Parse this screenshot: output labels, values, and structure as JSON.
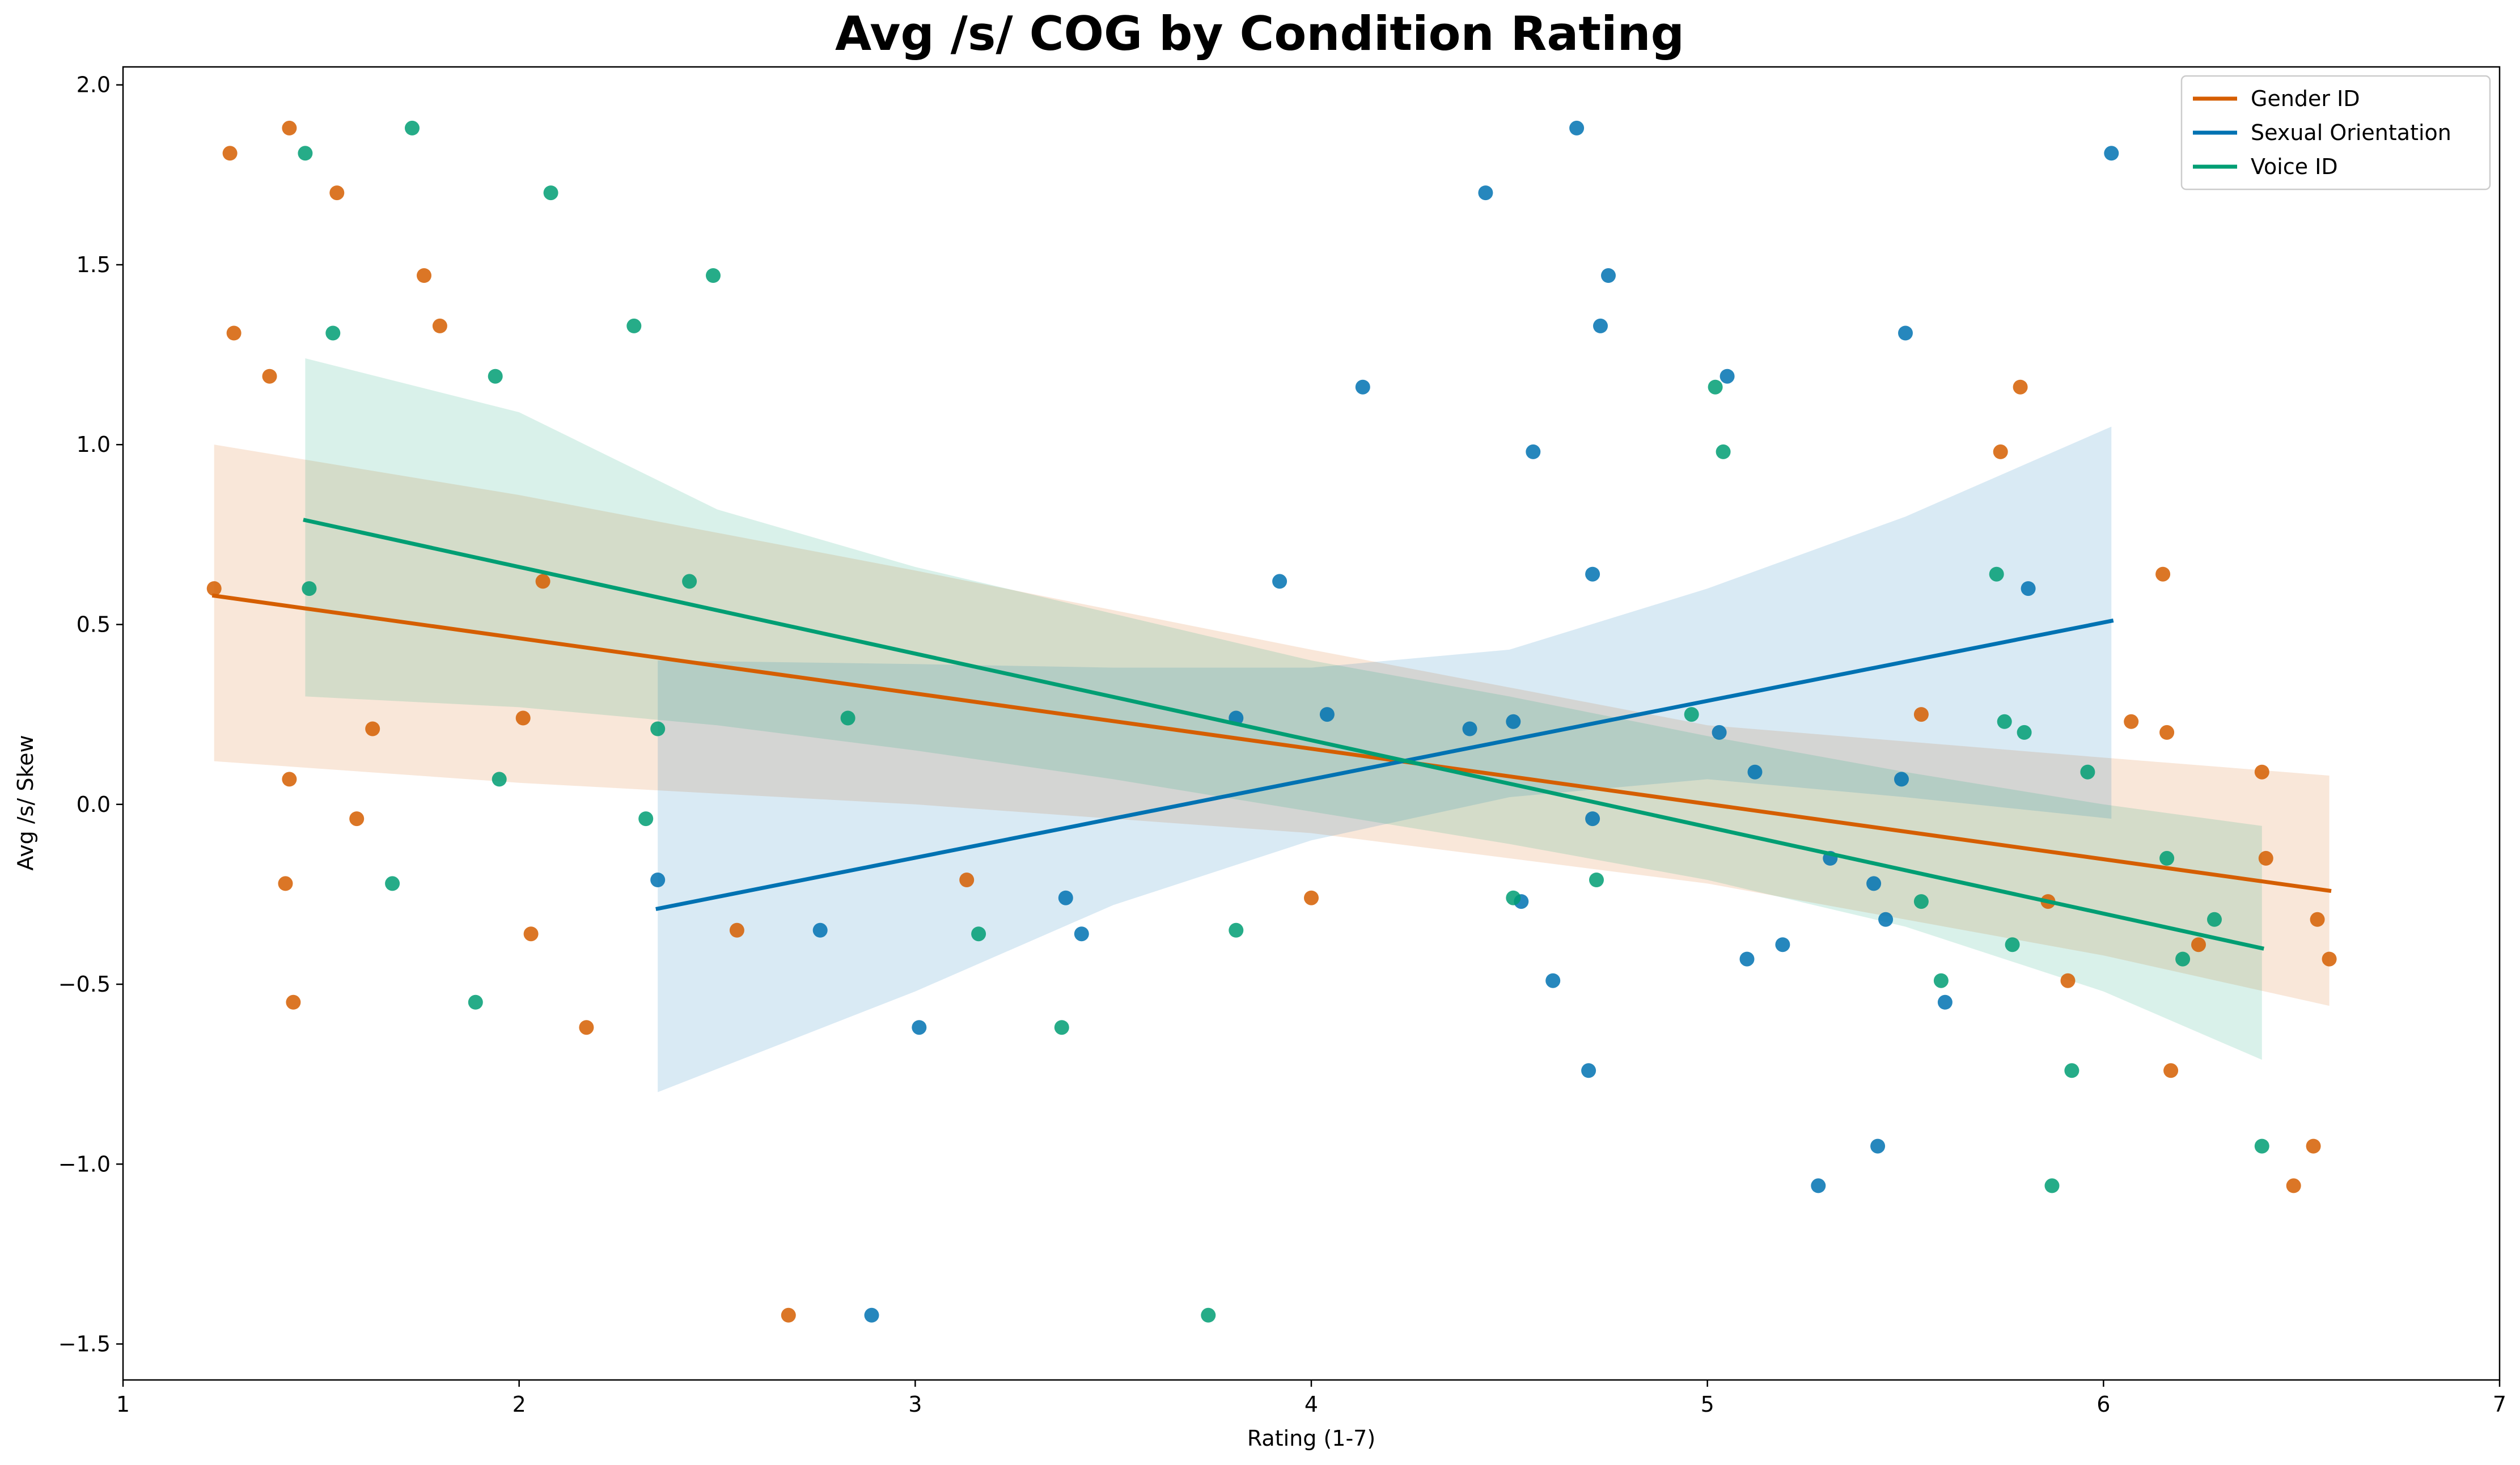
{
  "chart_data": {
    "type": "scatter",
    "title": "Avg /s/ COG by Condition Rating",
    "xlabel": "Rating (1-7)",
    "ylabel": "Avg /s/ Skew",
    "xlim": [
      1,
      7
    ],
    "ylim": [
      -1.6,
      2.05
    ],
    "x_ticks": [
      1,
      2,
      3,
      4,
      5,
      6,
      7
    ],
    "y_ticks": [
      -1.5,
      -1.0,
      -0.5,
      0.0,
      0.5,
      1.0,
      1.5,
      2.0
    ],
    "x_tick_labels": [
      "1",
      "2",
      "3",
      "4",
      "5",
      "6",
      "7"
    ],
    "y_tick_labels": [
      "−1.5",
      "−1.0",
      "−0.5",
      "0.0",
      "0.5",
      "1.0",
      "1.5",
      "2.0"
    ],
    "grid": false,
    "legend_position": "top-right",
    "series": [
      {
        "name": "Gender ID",
        "color": "#d55e00",
        "points": [
          [
            1.23,
            0.6
          ],
          [
            1.27,
            1.81
          ],
          [
            1.28,
            1.31
          ],
          [
            1.37,
            1.19
          ],
          [
            1.41,
            -0.22
          ],
          [
            1.42,
            1.88
          ],
          [
            1.42,
            0.07
          ],
          [
            1.43,
            -0.55
          ],
          [
            1.54,
            1.7
          ],
          [
            1.59,
            -0.04
          ],
          [
            1.63,
            0.21
          ],
          [
            1.76,
            1.47
          ],
          [
            1.8,
            1.33
          ],
          [
            2.01,
            0.24
          ],
          [
            2.03,
            -0.36
          ],
          [
            2.06,
            0.62
          ],
          [
            2.17,
            -0.62
          ],
          [
            2.55,
            -0.35
          ],
          [
            2.68,
            -1.42
          ],
          [
            3.13,
            -0.21
          ],
          [
            4.0,
            -0.26
          ],
          [
            5.54,
            0.25
          ],
          [
            5.74,
            0.98
          ],
          [
            5.79,
            1.16
          ],
          [
            5.86,
            -0.27
          ],
          [
            5.91,
            -0.49
          ],
          [
            6.07,
            0.23
          ],
          [
            6.15,
            0.64
          ],
          [
            6.16,
            0.2
          ],
          [
            6.17,
            -0.74
          ],
          [
            6.24,
            -0.39
          ],
          [
            6.4,
            0.09
          ],
          [
            6.41,
            -0.15
          ],
          [
            6.48,
            -1.06
          ],
          [
            6.53,
            -0.95
          ],
          [
            6.54,
            -0.32
          ],
          [
            6.57,
            -0.43
          ]
        ],
        "fit": [
          [
            1.23,
            0.58
          ],
          [
            6.57,
            -0.24
          ]
        ],
        "ci_upper": [
          [
            1.23,
            1.0
          ],
          [
            2.0,
            0.86
          ],
          [
            3.0,
            0.65
          ],
          [
            4.0,
            0.43
          ],
          [
            5.0,
            0.22
          ],
          [
            6.0,
            0.13
          ],
          [
            6.57,
            0.08
          ]
        ],
        "ci_lower": [
          [
            1.23,
            0.12
          ],
          [
            2.0,
            0.06
          ],
          [
            3.0,
            0.0
          ],
          [
            4.0,
            -0.08
          ],
          [
            5.0,
            -0.22
          ],
          [
            6.0,
            -0.42
          ],
          [
            6.57,
            -0.56
          ]
        ]
      },
      {
        "name": "Sexual Orientation",
        "color": "#0072b2",
        "points": [
          [
            2.35,
            -0.21
          ],
          [
            2.76,
            -0.35
          ],
          [
            2.89,
            -1.42
          ],
          [
            3.01,
            -0.62
          ],
          [
            3.38,
            -0.26
          ],
          [
            3.42,
            -0.36
          ],
          [
            3.81,
            0.24
          ],
          [
            3.92,
            0.62
          ],
          [
            4.04,
            0.25
          ],
          [
            4.13,
            1.16
          ],
          [
            4.4,
            0.21
          ],
          [
            4.44,
            1.7
          ],
          [
            4.51,
            0.23
          ],
          [
            4.53,
            -0.27
          ],
          [
            4.56,
            0.98
          ],
          [
            4.61,
            -0.49
          ],
          [
            4.67,
            1.88
          ],
          [
            4.7,
            -0.74
          ],
          [
            4.71,
            -0.04
          ],
          [
            4.71,
            0.64
          ],
          [
            4.73,
            1.33
          ],
          [
            4.75,
            1.47
          ],
          [
            5.03,
            0.2
          ],
          [
            5.05,
            1.19
          ],
          [
            5.1,
            -0.43
          ],
          [
            5.12,
            0.09
          ],
          [
            5.19,
            -0.39
          ],
          [
            5.28,
            -1.06
          ],
          [
            5.31,
            -0.15
          ],
          [
            5.42,
            -0.22
          ],
          [
            5.43,
            -0.95
          ],
          [
            5.45,
            -0.32
          ],
          [
            5.49,
            0.07
          ],
          [
            5.5,
            1.31
          ],
          [
            5.6,
            -0.55
          ],
          [
            5.81,
            0.6
          ],
          [
            6.02,
            1.81
          ]
        ],
        "fit": [
          [
            2.35,
            -0.29
          ],
          [
            6.02,
            0.51
          ]
        ],
        "ci_upper": [
          [
            2.35,
            0.4
          ],
          [
            3.0,
            0.39
          ],
          [
            3.5,
            0.38
          ],
          [
            4.0,
            0.38
          ],
          [
            4.5,
            0.43
          ],
          [
            5.0,
            0.6
          ],
          [
            5.5,
            0.8
          ],
          [
            6.02,
            1.05
          ]
        ],
        "ci_lower": [
          [
            2.35,
            -0.8
          ],
          [
            3.0,
            -0.52
          ],
          [
            3.5,
            -0.28
          ],
          [
            4.0,
            -0.1
          ],
          [
            4.5,
            0.02
          ],
          [
            5.0,
            0.07
          ],
          [
            5.5,
            0.02
          ],
          [
            6.02,
            -0.04
          ]
        ]
      },
      {
        "name": "Voice ID",
        "color": "#009e73",
        "points": [
          [
            1.46,
            1.81
          ],
          [
            1.47,
            0.6
          ],
          [
            1.53,
            1.31
          ],
          [
            1.68,
            -0.22
          ],
          [
            1.73,
            1.88
          ],
          [
            1.89,
            -0.55
          ],
          [
            1.94,
            1.19
          ],
          [
            1.95,
            0.07
          ],
          [
            2.08,
            1.7
          ],
          [
            2.29,
            1.33
          ],
          [
            2.32,
            -0.04
          ],
          [
            2.35,
            0.21
          ],
          [
            2.43,
            0.62
          ],
          [
            2.49,
            1.47
          ],
          [
            2.83,
            0.24
          ],
          [
            3.16,
            -0.36
          ],
          [
            3.37,
            -0.62
          ],
          [
            3.74,
            -1.42
          ],
          [
            3.81,
            -0.35
          ],
          [
            4.51,
            -0.26
          ],
          [
            4.72,
            -0.21
          ],
          [
            4.96,
            0.25
          ],
          [
            5.02,
            1.16
          ],
          [
            5.04,
            0.98
          ],
          [
            5.54,
            -0.27
          ],
          [
            5.59,
            -0.49
          ],
          [
            5.73,
            0.64
          ],
          [
            5.75,
            0.23
          ],
          [
            5.77,
            -0.39
          ],
          [
            5.8,
            0.2
          ],
          [
            5.87,
            -1.06
          ],
          [
            5.92,
            -0.74
          ],
          [
            5.96,
            0.09
          ],
          [
            6.16,
            -0.15
          ],
          [
            6.2,
            -0.43
          ],
          [
            6.28,
            -0.32
          ],
          [
            6.4,
            -0.95
          ]
        ],
        "fit": [
          [
            1.46,
            0.79
          ],
          [
            6.4,
            -0.4
          ]
        ],
        "ci_upper": [
          [
            1.46,
            1.24
          ],
          [
            2.0,
            1.09
          ],
          [
            2.5,
            0.82
          ],
          [
            3.0,
            0.66
          ],
          [
            3.5,
            0.53
          ],
          [
            4.0,
            0.4
          ],
          [
            4.5,
            0.3
          ],
          [
            5.0,
            0.19
          ],
          [
            5.5,
            0.09
          ],
          [
            6.0,
            0.0
          ],
          [
            6.4,
            -0.06
          ]
        ],
        "ci_lower": [
          [
            1.46,
            0.3
          ],
          [
            2.0,
            0.27
          ],
          [
            2.5,
            0.22
          ],
          [
            3.0,
            0.15
          ],
          [
            3.5,
            0.07
          ],
          [
            4.0,
            -0.02
          ],
          [
            4.5,
            -0.11
          ],
          [
            5.0,
            -0.21
          ],
          [
            5.5,
            -0.34
          ],
          [
            6.0,
            -0.52
          ],
          [
            6.4,
            -0.71
          ]
        ]
      }
    ]
  }
}
